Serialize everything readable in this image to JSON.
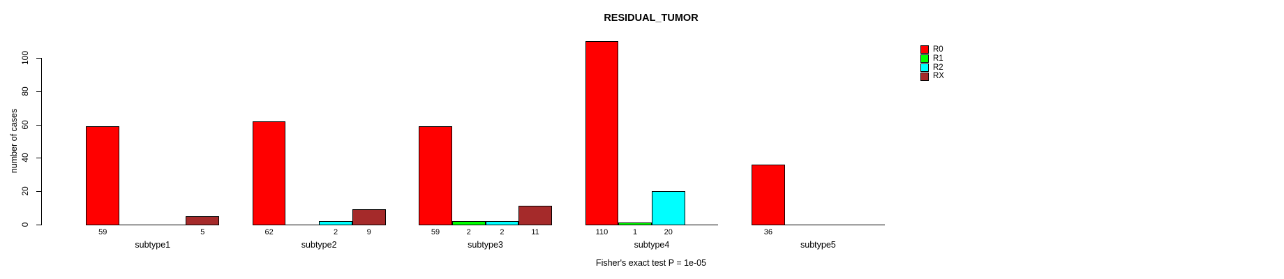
{
  "chart_data": {
    "type": "bar",
    "title": "RESIDUAL_TUMOR",
    "ylabel": "number of cases",
    "xlabel": "",
    "footnote": "Fisher's exact test P = 1e-05",
    "categories": [
      "subtype1",
      "subtype2",
      "subtype3",
      "subtype4",
      "subtype5"
    ],
    "series": [
      {
        "name": "R0",
        "color": "#FF0000",
        "values": [
          59,
          62,
          59,
          110,
          36
        ]
      },
      {
        "name": "R1",
        "color": "#00FF00",
        "values": [
          0,
          0,
          2,
          1,
          0
        ]
      },
      {
        "name": "R2",
        "color": "#00FFFF",
        "values": [
          0,
          2,
          2,
          20,
          0
        ]
      },
      {
        "name": "RX",
        "color": "#A52A2A",
        "values": [
          5,
          9,
          11,
          0,
          0
        ]
      }
    ],
    "yticks": [
      0,
      20,
      40,
      60,
      80,
      100
    ],
    "ylim": [
      0,
      100
    ],
    "grid": false,
    "legend_position": "top-right",
    "bar_value_labels": true,
    "zero_values_hidden": true
  }
}
